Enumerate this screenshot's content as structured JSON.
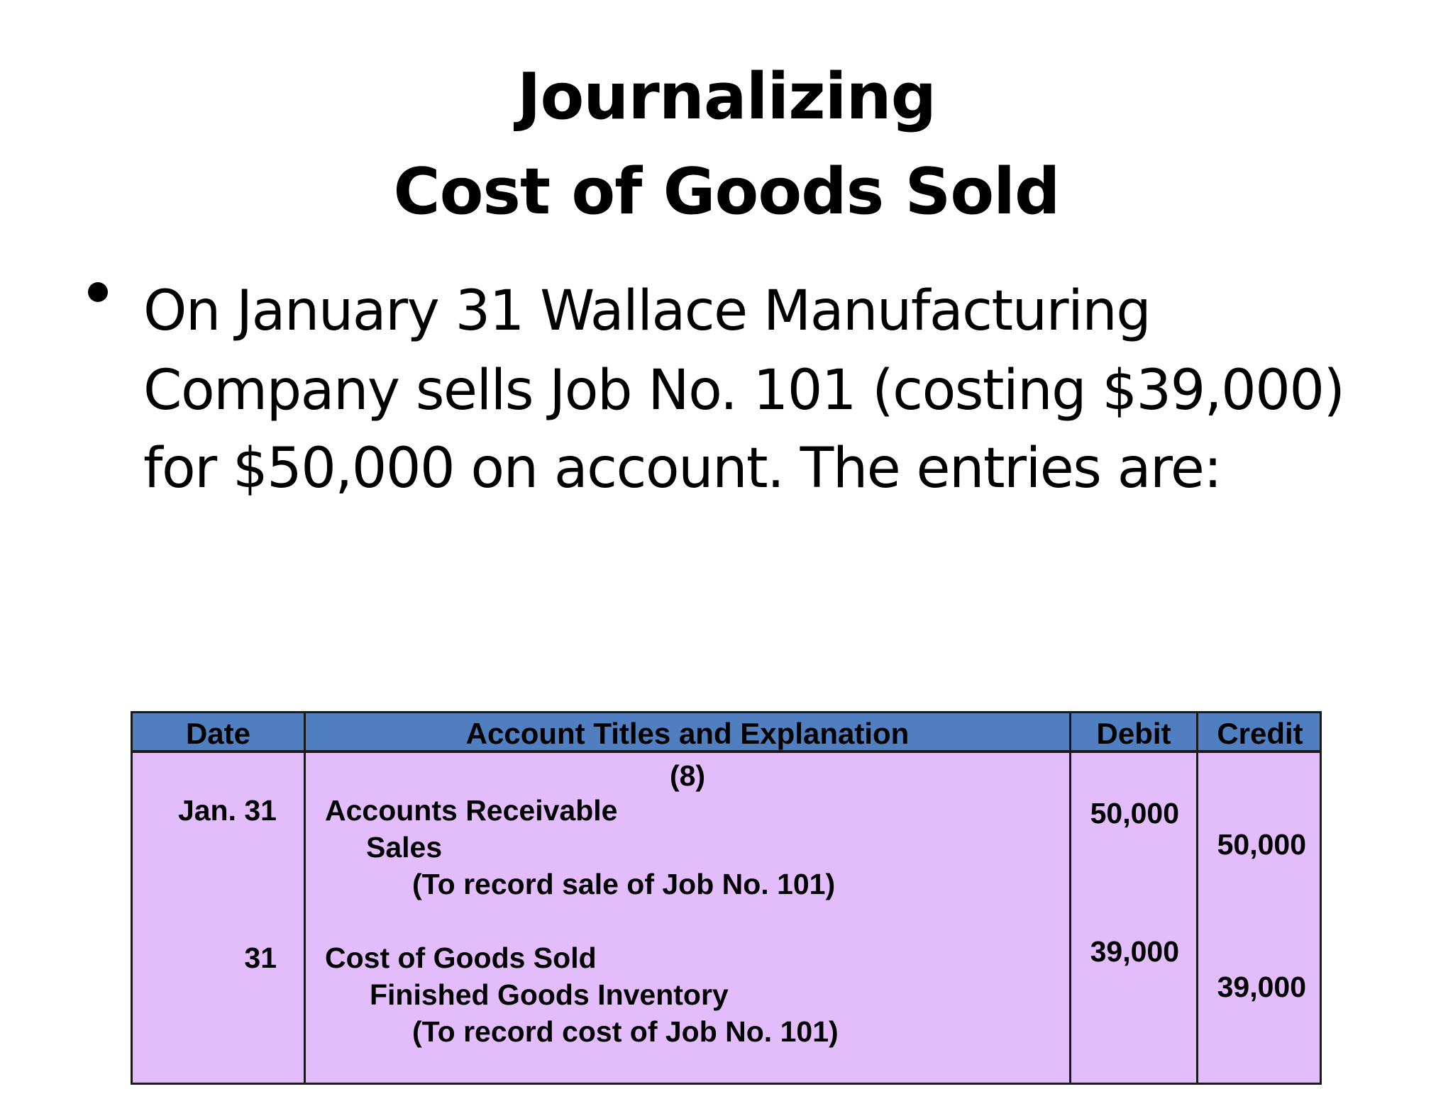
{
  "slide": {
    "title_line1": "Journalizing",
    "title_line2": "Cost of Goods Sold",
    "bullet_lines": [
      "On January 31 Wallace Manufacturing",
      "Company sells Job No. 101 (costing $39,000)",
      "for $50,000 on account.  The entries are:"
    ]
  },
  "journal": {
    "headers": {
      "date": "Date",
      "account": "Account Titles and Explanation",
      "debit": "Debit",
      "credit": "Credit"
    },
    "entry_number": "(8)",
    "entries": [
      {
        "date": "Jan. 31",
        "debit_account": "Accounts Receivable",
        "credit_account": "Sales",
        "explanation": "(To record sale of Job No. 101)",
        "debit": "50,000",
        "credit": "50,000"
      },
      {
        "date": "31",
        "debit_account": "Cost of Goods Sold",
        "credit_account": "Finished Goods Inventory",
        "explanation": "(To record cost of Job No. 101)",
        "debit": "39,000",
        "credit": "39,000"
      }
    ],
    "colors": {
      "header_bg": "#4f7fc1",
      "body_bg": "#e3bdfb",
      "border": "#1a1a1a"
    }
  }
}
